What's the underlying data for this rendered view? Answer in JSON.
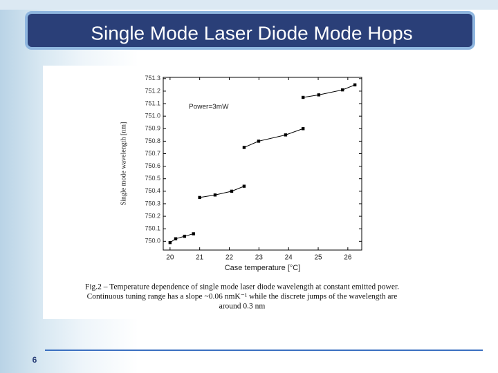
{
  "slide": {
    "title": "Single Mode Laser Diode Mode Hops",
    "page_number": "6",
    "caption": [
      "Fig.2 – Temperature dependence of single mode laser diode wavelength at constant emitted power.",
      "Continuous tuning range has a slope ~0.06 nmK⁻¹ while the discrete jumps of the wavelength are",
      "around 0.3 nm"
    ]
  },
  "chart_data": {
    "type": "line",
    "x_label": "Case temperature [°C]",
    "y_label": "Single mode wavelength [nm]",
    "annotation": "Power=3mW",
    "color": "#000000",
    "xlim": [
      19.77,
      26.47
    ],
    "xticks": [
      20,
      21,
      22,
      23,
      24,
      25,
      26
    ],
    "ylim": [
      749.93,
      751.31
    ],
    "yticks": [
      {
        "value": 751.3,
        "label": "751.3"
      },
      751.2,
      751.1,
      {
        "value": 751,
        "label": "751.0"
      },
      750.9,
      750.8,
      750.7,
      750.6,
      750.5,
      750.4,
      750.3,
      750.2,
      750.1,
      {
        "value": 750,
        "label": "750.0"
      }
    ],
    "series": [
      {
        "x": [
          20.0,
          20.19,
          20.49,
          20.79
        ],
        "values": [
          749.99,
          750.02,
          750.04,
          750.06
        ]
      },
      {
        "x": [
          21.0,
          21.52,
          22.08,
          22.5
        ],
        "values": [
          750.35,
          750.37,
          750.4,
          750.44
        ]
      },
      {
        "x": [
          22.5,
          22.99,
          23.9,
          24.49
        ],
        "values": [
          750.75,
          750.8,
          750.85,
          750.9
        ]
      },
      {
        "x": [
          24.49,
          25.02,
          25.82,
          26.24
        ],
        "values": [
          751.15,
          751.17,
          751.21,
          751.25
        ]
      }
    ]
  }
}
